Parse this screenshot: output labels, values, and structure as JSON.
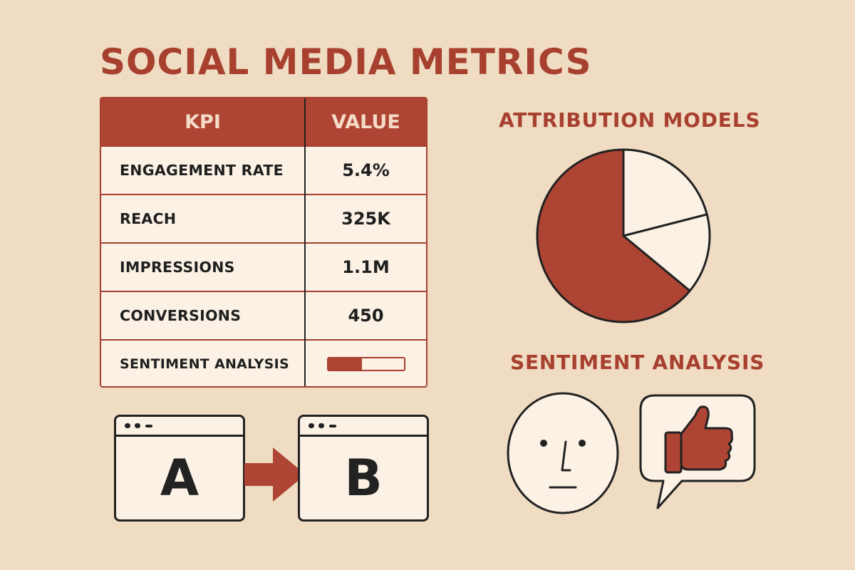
{
  "title": "SOCIAL MEDIA METRICS",
  "kpi_table": {
    "headers": [
      "KPI",
      "VALUE"
    ],
    "rows": [
      {
        "kpi": "ENGAGEMENT RATE",
        "value": "5.4%"
      },
      {
        "kpi": "REACH",
        "value": "325K"
      },
      {
        "kpi": "IMPRESSIONS",
        "value": "1.1M"
      },
      {
        "kpi": "CONVERSIONS",
        "value": "450"
      },
      {
        "kpi": "SENTIMENT ANALYSIS",
        "progress_fraction": 0.45
      }
    ]
  },
  "attribution": {
    "title": "ATTRIBUTION MODELS"
  },
  "chart_data": {
    "type": "pie",
    "title": "ATTRIBUTION MODELS",
    "slices": [
      {
        "value": 64,
        "color": "#ae4433"
      },
      {
        "value": 21,
        "color": "#fbf1e4"
      },
      {
        "value": 15,
        "color": "#fbf1e4"
      }
    ]
  },
  "sentiment": {
    "title": "SENTIMENT ANALYSIS",
    "icons": [
      "neutral-face-icon",
      "thumbs-up-speech-bubble-icon"
    ]
  },
  "ab_test": {
    "left_label": "A",
    "right_label": "B",
    "icons": [
      "browser-window-icon",
      "arrow-right-icon"
    ]
  },
  "colors": {
    "accent": "#ae4433",
    "background": "#efdcc3",
    "panel": "#fbf1e4",
    "ink": "#222222"
  }
}
